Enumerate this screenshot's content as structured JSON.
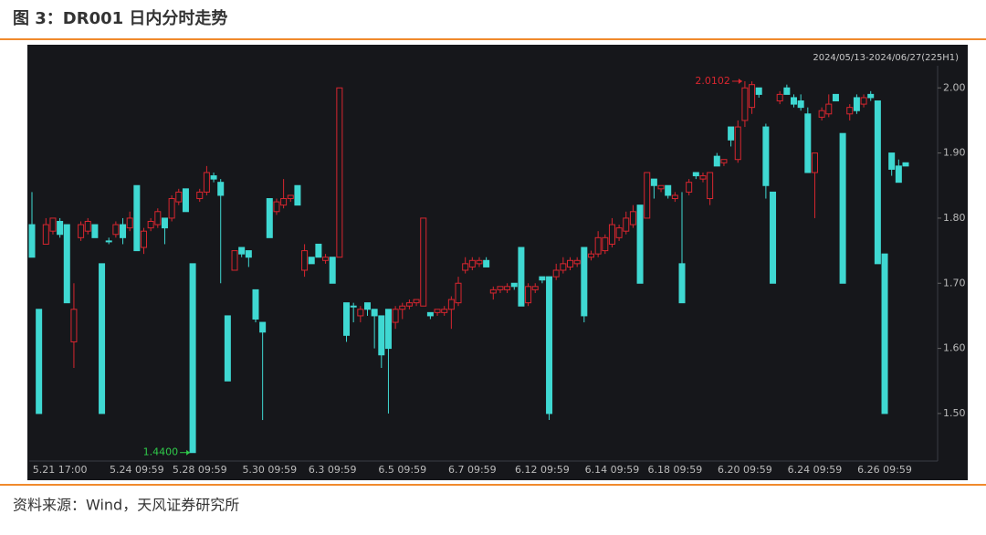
{
  "chart_data": {
    "type": "candlestick",
    "title": "图 3：DR001 日内分时走势",
    "source": "资料来源：Wind，天风证券研究所",
    "range_label": "2024/05/13-2024/06/27(225H1)",
    "up_color": "#d8262f",
    "down_color": "#3fd8d2",
    "ylim": [
      1.427,
      2.034
    ],
    "yticks": [
      {
        "value": 1.5,
        "label": "1.50"
      },
      {
        "value": 1.6,
        "label": "1.60"
      },
      {
        "value": 1.7,
        "label": "1.70"
      },
      {
        "value": 1.8,
        "label": "1.80"
      },
      {
        "value": 1.9,
        "label": "1.90"
      },
      {
        "value": 2.0,
        "label": "2.00"
      }
    ],
    "categories": [
      null,
      null,
      null,
      null,
      "5.21 17:00",
      null,
      null,
      null,
      null,
      null,
      null,
      null,
      null,
      null,
      null,
      "5.24 09:59",
      null,
      null,
      null,
      null,
      null,
      null,
      null,
      null,
      "5.28 09:59",
      null,
      null,
      null,
      null,
      null,
      null,
      null,
      null,
      null,
      "5.30 09:59",
      null,
      null,
      null,
      null,
      null,
      null,
      null,
      null,
      "6.3 09:59",
      null,
      null,
      null,
      null,
      null,
      null,
      null,
      null,
      null,
      "6.5 09:59",
      null,
      null,
      null,
      null,
      null,
      null,
      null,
      null,
      null,
      "6.7 09:59",
      null,
      null,
      null,
      null,
      null,
      null,
      null,
      null,
      null,
      "6.12 09:59",
      null,
      null,
      null,
      null,
      null,
      null,
      null,
      null,
      null,
      "6.14 09:59",
      null,
      null,
      null,
      null,
      null,
      null,
      null,
      null,
      "6.18 09:59",
      null,
      null,
      null,
      null,
      null,
      null,
      null,
      null,
      null,
      "6.20 09:59",
      null,
      null,
      null,
      null,
      null,
      null,
      null,
      null,
      null,
      "6.24 09:59",
      null,
      null,
      null,
      null,
      null,
      null,
      null,
      null,
      null,
      "6.26 09:59",
      null,
      null,
      null
    ],
    "open": [
      1.79,
      1.66,
      1.76,
      1.78,
      1.795,
      1.79,
      1.61,
      1.77,
      1.78,
      1.79,
      1.73,
      1.765,
      1.775,
      1.79,
      1.785,
      1.85,
      1.755,
      1.785,
      1.79,
      1.8,
      1.8,
      1.825,
      1.845,
      1.73,
      1.83,
      1.84,
      1.865,
      1.855,
      1.65,
      1.72,
      1.755,
      1.75,
      1.69,
      1.64,
      1.83,
      1.81,
      1.82,
      1.83,
      1.85,
      1.72,
      1.74,
      1.76,
      1.735,
      1.74,
      1.74,
      1.67,
      1.665,
      1.65,
      1.67,
      1.66,
      1.65,
      1.66,
      1.64,
      1.66,
      1.665,
      1.67,
      1.665,
      1.655,
      1.655,
      1.655,
      1.66,
      1.67,
      1.72,
      1.725,
      1.73,
      1.735,
      1.685,
      1.69,
      1.69,
      1.7,
      1.755,
      1.67,
      1.69,
      1.71,
      1.71,
      1.71,
      1.72,
      1.725,
      1.73,
      1.755,
      1.74,
      1.745,
      1.75,
      1.76,
      1.77,
      1.78,
      1.79,
      1.82,
      1.8,
      1.86,
      1.845,
      1.85,
      1.83,
      1.73,
      1.84,
      1.87,
      1.86,
      1.83,
      1.895,
      1.885,
      1.94,
      1.89,
      1.95,
      1.97,
      2.0,
      1.94,
      1.84,
      1.98,
      2.0,
      1.985,
      1.98,
      1.96,
      1.87,
      1.955,
      1.96,
      1.99,
      1.93,
      1.96,
      1.985,
      1.975,
      1.99,
      1.98,
      1.745,
      1.9,
      1.88,
      1.885
    ],
    "high": [
      1.84,
      1.66,
      1.8,
      1.8,
      1.8,
      1.79,
      1.7,
      1.795,
      1.8,
      1.79,
      1.73,
      1.77,
      1.795,
      1.8,
      1.81,
      1.85,
      1.785,
      1.8,
      1.815,
      1.8,
      1.835,
      1.845,
      1.845,
      1.73,
      1.845,
      1.88,
      1.87,
      1.86,
      1.65,
      1.75,
      1.755,
      1.75,
      1.69,
      1.64,
      1.83,
      1.83,
      1.86,
      1.835,
      1.85,
      1.76,
      1.74,
      1.76,
      1.745,
      1.74,
      2.0,
      1.67,
      1.67,
      1.665,
      1.67,
      1.66,
      1.65,
      1.66,
      1.665,
      1.67,
      1.675,
      1.675,
      1.8,
      1.655,
      1.66,
      1.665,
      1.68,
      1.71,
      1.74,
      1.74,
      1.74,
      1.74,
      1.695,
      1.695,
      1.7,
      1.7,
      1.755,
      1.7,
      1.7,
      1.71,
      1.71,
      1.73,
      1.74,
      1.74,
      1.74,
      1.755,
      1.75,
      1.78,
      1.775,
      1.8,
      1.79,
      1.81,
      1.82,
      1.82,
      1.87,
      1.86,
      1.85,
      1.85,
      1.84,
      1.84,
      1.86,
      1.87,
      1.87,
      1.87,
      1.9,
      1.89,
      1.94,
      1.95,
      2.0102,
      2.01,
      2.0,
      1.945,
      1.84,
      1.995,
      2.005,
      1.99,
      1.99,
      1.97,
      1.9,
      1.97,
      1.99,
      1.99,
      1.93,
      1.975,
      1.99,
      1.99,
      1.995,
      1.98,
      1.745,
      1.9,
      1.89,
      1.885
    ],
    "low": [
      1.74,
      1.5,
      1.76,
      1.775,
      1.77,
      1.67,
      1.57,
      1.765,
      1.775,
      1.77,
      1.5,
      1.76,
      1.77,
      1.76,
      1.78,
      1.75,
      1.745,
      1.78,
      1.785,
      1.76,
      1.795,
      1.82,
      1.81,
      1.44,
      1.825,
      1.835,
      1.855,
      1.7,
      1.55,
      1.72,
      1.74,
      1.725,
      1.64,
      1.49,
      1.77,
      1.805,
      1.815,
      1.825,
      1.82,
      1.71,
      1.73,
      1.74,
      1.73,
      1.7,
      1.74,
      1.61,
      1.64,
      1.64,
      1.65,
      1.6,
      1.57,
      1.5,
      1.63,
      1.645,
      1.66,
      1.665,
      1.665,
      1.645,
      1.65,
      1.65,
      1.63,
      1.665,
      1.715,
      1.72,
      1.725,
      1.725,
      1.675,
      1.685,
      1.685,
      1.69,
      1.665,
      1.665,
      1.685,
      1.7,
      1.49,
      1.705,
      1.715,
      1.72,
      1.725,
      1.64,
      1.735,
      1.74,
      1.745,
      1.755,
      1.765,
      1.775,
      1.785,
      1.7,
      1.8,
      1.83,
      1.84,
      1.83,
      1.825,
      1.67,
      1.835,
      1.86,
      1.855,
      1.82,
      1.88,
      1.88,
      1.91,
      1.885,
      1.94,
      1.96,
      1.985,
      1.83,
      1.7,
      1.975,
      1.99,
      1.97,
      1.965,
      1.87,
      1.8,
      1.95,
      1.955,
      1.98,
      1.7,
      1.95,
      1.96,
      1.97,
      1.98,
      1.73,
      1.5,
      1.865,
      1.855,
      1.88
    ],
    "close": [
      1.74,
      1.5,
      1.79,
      1.8,
      1.775,
      1.67,
      1.66,
      1.79,
      1.795,
      1.77,
      1.5,
      1.765,
      1.79,
      1.77,
      1.8,
      1.75,
      1.78,
      1.795,
      1.81,
      1.785,
      1.83,
      1.84,
      1.81,
      1.44,
      1.84,
      1.87,
      1.86,
      1.835,
      1.55,
      1.75,
      1.745,
      1.74,
      1.645,
      1.625,
      1.77,
      1.825,
      1.83,
      1.835,
      1.82,
      1.75,
      1.73,
      1.74,
      1.74,
      1.7,
      2.0,
      1.62,
      1.665,
      1.66,
      1.66,
      1.65,
      1.59,
      1.6,
      1.66,
      1.665,
      1.67,
      1.675,
      1.8,
      1.65,
      1.66,
      1.66,
      1.675,
      1.7,
      1.73,
      1.735,
      1.735,
      1.725,
      1.69,
      1.695,
      1.695,
      1.695,
      1.665,
      1.695,
      1.695,
      1.705,
      1.5,
      1.72,
      1.73,
      1.735,
      1.735,
      1.65,
      1.745,
      1.77,
      1.77,
      1.79,
      1.785,
      1.8,
      1.81,
      1.7,
      1.87,
      1.85,
      1.85,
      1.835,
      1.835,
      1.67,
      1.855,
      1.865,
      1.865,
      1.87,
      1.88,
      1.89,
      1.92,
      1.94,
      2.0,
      2.005,
      1.99,
      1.85,
      1.7,
      1.99,
      1.99,
      1.975,
      1.97,
      1.87,
      1.9,
      1.965,
      1.975,
      1.98,
      1.7,
      1.97,
      1.965,
      1.985,
      1.985,
      1.73,
      1.5,
      1.875,
      1.855,
      1.88
    ],
    "annotations": [
      {
        "text": "2.0102",
        "value": 2.0102,
        "index": 102,
        "color": "#d8262f"
      },
      {
        "text": "1.4400",
        "value": 1.44,
        "index": 23,
        "color": "#2fcb4a"
      }
    ]
  }
}
